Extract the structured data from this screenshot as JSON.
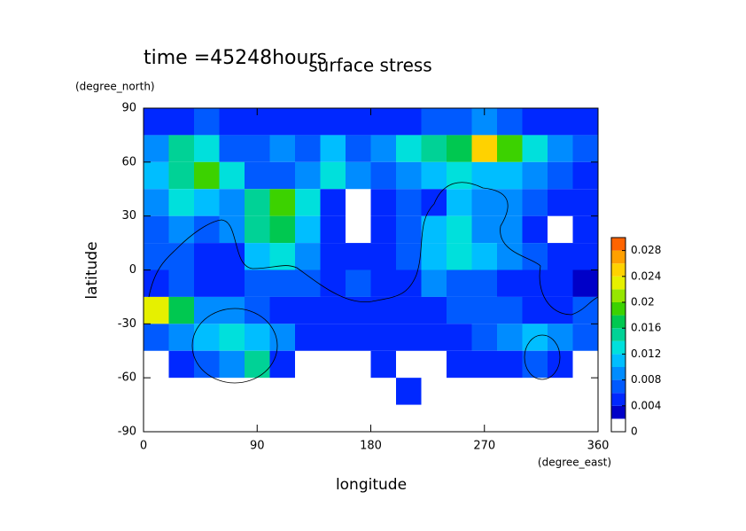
{
  "chart_data": {
    "type": "contour",
    "title": "surface stress",
    "subtitle": "time =45248hours",
    "xlabel": "longitude",
    "xunits": "(degree_east)",
    "ylabel": "latitude",
    "yunits": "(degree_north)",
    "xlim": [
      0,
      360
    ],
    "xticks": [
      0,
      90,
      180,
      270,
      360
    ],
    "ylim": [
      -90,
      90
    ],
    "yticks": [
      -90,
      -60,
      -30,
      0,
      30,
      60,
      90
    ],
    "x": [
      0,
      20,
      40,
      60,
      80,
      100,
      120,
      140,
      160,
      180,
      200,
      220,
      240,
      260,
      280,
      300,
      320,
      340,
      360
    ],
    "y": [
      90,
      75,
      60,
      45,
      30,
      15,
      0,
      -15,
      -30,
      -45,
      -60,
      -75,
      -90
    ],
    "z": [
      [
        0.004,
        0.004,
        0.006,
        0.004,
        0.004,
        0.004,
        0.004,
        0.004,
        0.004,
        0.004,
        0.004,
        0.006,
        0.006,
        0.008,
        0.006,
        0.004,
        0.004,
        0.004
      ],
      [
        0.008,
        0.014,
        0.012,
        0.006,
        0.006,
        0.008,
        0.006,
        0.01,
        0.006,
        0.008,
        0.012,
        0.014,
        0.016,
        0.024,
        0.018,
        0.012,
        0.008,
        0.006
      ],
      [
        0.01,
        0.014,
        0.018,
        0.012,
        0.006,
        0.006,
        0.008,
        0.012,
        0.008,
        0.006,
        0.008,
        0.01,
        0.012,
        0.01,
        0.01,
        0.008,
        0.006,
        0.004
      ],
      [
        0.008,
        0.012,
        0.01,
        0.008,
        0.014,
        0.018,
        0.012,
        0.004,
        null,
        0.004,
        0.006,
        0.004,
        0.01,
        0.008,
        0.008,
        0.006,
        0.004,
        0.004
      ],
      [
        0.006,
        0.008,
        0.006,
        0.008,
        0.014,
        0.016,
        0.01,
        0.004,
        null,
        0.004,
        0.006,
        0.01,
        0.012,
        0.008,
        0.008,
        0.004,
        null,
        0.004
      ],
      [
        0.006,
        0.006,
        0.004,
        0.004,
        0.01,
        0.012,
        0.008,
        0.004,
        0.004,
        0.004,
        0.006,
        0.01,
        0.012,
        0.01,
        0.008,
        0.006,
        0.004,
        0.004
      ],
      [
        0.004,
        0.006,
        0.004,
        0.004,
        0.006,
        0.006,
        0.006,
        0.004,
        0.006,
        0.004,
        0.004,
        0.008,
        0.006,
        0.006,
        0.004,
        0.004,
        0.004,
        0.002
      ],
      [
        0.022,
        0.016,
        0.008,
        0.008,
        0.006,
        0.004,
        0.004,
        0.004,
        0.004,
        0.004,
        0.004,
        0.004,
        0.006,
        0.006,
        0.006,
        0.004,
        0.004,
        0.006
      ],
      [
        0.006,
        0.008,
        0.01,
        0.012,
        0.01,
        0.008,
        0.004,
        0.004,
        0.004,
        0.004,
        0.004,
        0.004,
        0.004,
        0.006,
        0.008,
        0.01,
        0.008,
        0.006
      ],
      [
        null,
        0.004,
        0.006,
        0.008,
        0.014,
        0.004,
        null,
        null,
        null,
        0.004,
        null,
        null,
        0.004,
        0.004,
        0.004,
        0.006,
        0.004,
        null
      ],
      [
        null,
        null,
        null,
        null,
        null,
        null,
        null,
        null,
        null,
        null,
        0.004,
        null,
        null,
        null,
        null,
        null,
        null,
        null
      ],
      [
        null,
        null,
        null,
        null,
        null,
        null,
        null,
        null,
        null,
        null,
        null,
        null,
        null,
        null,
        null,
        null,
        null,
        null
      ]
    ],
    "levels": [
      0,
      0.002,
      0.004,
      0.006,
      0.008,
      0.01,
      0.012,
      0.014,
      0.016,
      0.018,
      0.02,
      0.022,
      0.024,
      0.026,
      0.028,
      0.03
    ],
    "colors": [
      "#ffffff",
      "#0000c8",
      "#0028ff",
      "#005aff",
      "#008cff",
      "#00beff",
      "#00e0dc",
      "#00d296",
      "#00c850",
      "#3cd200",
      "#96e600",
      "#e6f000",
      "#ffd200",
      "#ffa000",
      "#ff6400"
    ],
    "colorbar_ticks": [
      0,
      0.004,
      0.008,
      0.012,
      0.016,
      0.02,
      0.024,
      0.028
    ]
  }
}
